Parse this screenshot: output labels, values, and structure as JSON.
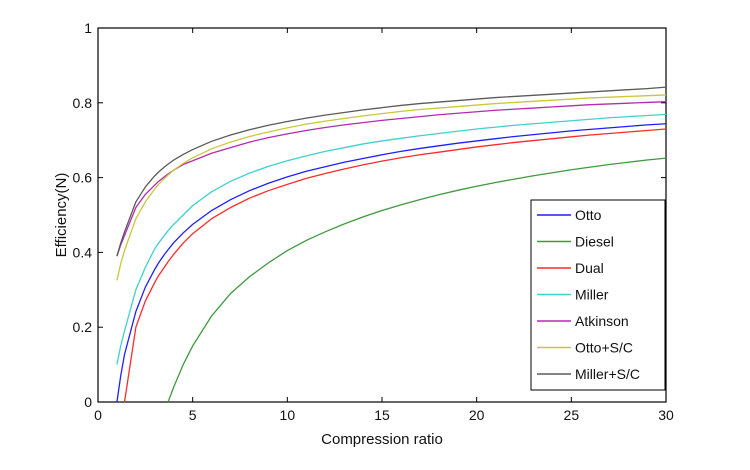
{
  "chart_data": {
    "type": "line",
    "xlabel": "Compression ratio",
    "ylabel": "Efficiency(N)",
    "xlim": [
      0,
      30
    ],
    "ylim": [
      0,
      1
    ],
    "xticks": [
      0,
      5,
      10,
      15,
      20,
      25,
      30
    ],
    "yticks": [
      0,
      0.2,
      0.4,
      0.6,
      0.8,
      1
    ],
    "xtick_labels": [
      "0",
      "5",
      "10",
      "15",
      "20",
      "25",
      "30"
    ],
    "ytick_labels": [
      "0",
      "0.2",
      "0.4",
      "0.6",
      "0.8",
      "1"
    ],
    "grid": false,
    "legend_position": "bottom-right",
    "x": [
      1,
      1.2,
      1.4,
      2,
      2.5,
      3,
      3.2,
      3.5,
      3.7,
      4,
      4.5,
      5,
      6,
      7,
      8,
      9,
      10,
      11,
      12,
      13,
      14,
      15,
      16,
      17,
      18,
      19,
      20,
      21,
      22,
      23,
      24,
      25,
      26,
      27,
      28,
      29,
      30
    ],
    "series": [
      {
        "name": "Otto",
        "color": "#1f1fff",
        "values": [
          0,
          0.07,
          0.127,
          0.242,
          0.307,
          0.355,
          0.372,
          0.394,
          0.407,
          0.426,
          0.452,
          0.475,
          0.512,
          0.541,
          0.565,
          0.585,
          0.602,
          0.617,
          0.629,
          0.641,
          0.651,
          0.661,
          0.67,
          0.678,
          0.685,
          0.692,
          0.698,
          0.704,
          0.71,
          0.715,
          0.72,
          0.725,
          0.729,
          0.733,
          0.737,
          0.741,
          0.744
        ]
      },
      {
        "name": "Diesel",
        "color": "#3f9a3f",
        "values": [
          null,
          null,
          null,
          null,
          null,
          null,
          null,
          null,
          0,
          0.04,
          0.1,
          0.15,
          0.23,
          0.29,
          0.335,
          0.372,
          0.405,
          0.432,
          0.455,
          0.476,
          0.495,
          0.512,
          0.527,
          0.541,
          0.554,
          0.566,
          0.577,
          0.587,
          0.596,
          0.605,
          0.613,
          0.621,
          0.628,
          0.635,
          0.641,
          0.647,
          0.652
        ]
      },
      {
        "name": "Dual",
        "color": "#ff2a2a",
        "values": [
          null,
          null,
          0,
          0.2,
          0.27,
          0.32,
          0.338,
          0.36,
          0.375,
          0.395,
          0.425,
          0.45,
          0.49,
          0.52,
          0.545,
          0.565,
          0.582,
          0.598,
          0.611,
          0.623,
          0.634,
          0.644,
          0.653,
          0.661,
          0.668,
          0.675,
          0.682,
          0.688,
          0.694,
          0.699,
          0.704,
          0.709,
          0.714,
          0.718,
          0.722,
          0.726,
          0.73
        ]
      },
      {
        "name": "Miller",
        "color": "#40d0d0",
        "values": [
          0.1,
          0.15,
          0.19,
          0.3,
          0.36,
          0.41,
          0.425,
          0.445,
          0.458,
          0.475,
          0.5,
          0.525,
          0.562,
          0.59,
          0.612,
          0.63,
          0.645,
          0.658,
          0.67,
          0.68,
          0.69,
          0.698,
          0.705,
          0.712,
          0.718,
          0.724,
          0.73,
          0.735,
          0.74,
          0.744,
          0.748,
          0.752,
          0.756,
          0.76,
          0.763,
          0.766,
          0.769
        ]
      },
      {
        "name": "Atkinson",
        "color": "#b32ab3",
        "values": [
          0.39,
          0.42,
          0.445,
          0.52,
          0.555,
          0.58,
          0.59,
          0.602,
          0.61,
          0.62,
          0.635,
          0.645,
          0.665,
          0.68,
          0.695,
          0.707,
          0.717,
          0.726,
          0.734,
          0.741,
          0.747,
          0.753,
          0.758,
          0.763,
          0.768,
          0.772,
          0.776,
          0.78,
          0.783,
          0.786,
          0.789,
          0.792,
          0.795,
          0.797,
          0.799,
          0.801,
          0.803
        ]
      },
      {
        "name": "Otto+S/C",
        "color": "#c8c83a",
        "values": [
          0.325,
          0.37,
          0.405,
          0.49,
          0.535,
          0.57,
          0.582,
          0.597,
          0.607,
          0.62,
          0.638,
          0.653,
          0.677,
          0.695,
          0.71,
          0.722,
          0.733,
          0.743,
          0.751,
          0.758,
          0.765,
          0.771,
          0.777,
          0.782,
          0.786,
          0.79,
          0.794,
          0.798,
          0.801,
          0.804,
          0.807,
          0.81,
          0.813,
          0.815,
          0.817,
          0.819,
          0.821
        ]
      },
      {
        "name": "Miller+S/C",
        "color": "#5a5a5a",
        "values": [
          0.39,
          0.425,
          0.455,
          0.535,
          0.575,
          0.605,
          0.615,
          0.628,
          0.636,
          0.647,
          0.662,
          0.675,
          0.697,
          0.714,
          0.728,
          0.74,
          0.75,
          0.759,
          0.767,
          0.774,
          0.781,
          0.787,
          0.793,
          0.798,
          0.802,
          0.806,
          0.81,
          0.814,
          0.817,
          0.82,
          0.823,
          0.826,
          0.829,
          0.832,
          0.835,
          0.838,
          0.842
        ]
      }
    ]
  }
}
